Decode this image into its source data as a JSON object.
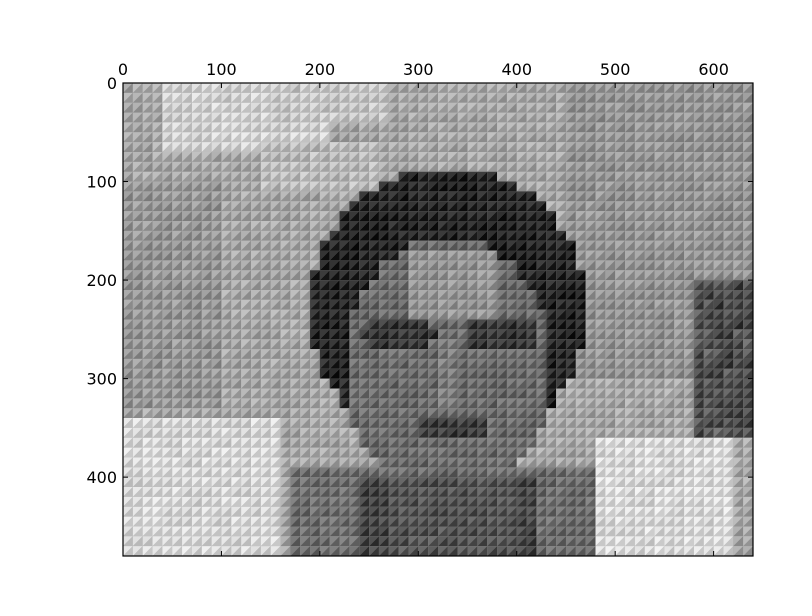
{
  "chart_data": {
    "type": "heatmap",
    "title": "",
    "xlabel": "",
    "ylabel": "",
    "colormap": "gray",
    "image_width": 640,
    "image_height": 480,
    "xlim": [
      0,
      640
    ],
    "ylim": [
      480,
      0
    ],
    "x_ticks": [
      0,
      100,
      200,
      300,
      400,
      500,
      600
    ],
    "y_ticks": [
      0,
      100,
      200,
      300,
      400
    ],
    "x_tick_position": "top",
    "y_axis_inverted": true,
    "grid": false,
    "content": "grayscale image of a person's face, rendered with a coarse mosaic of shaded triangular blocks",
    "colors": {
      "background": "#ffffff",
      "axes_edge": "#000000",
      "light_tone": "#d8d8d8",
      "mid_tone": "#9c9c9c",
      "dark_tone": "#1e1e1e"
    }
  }
}
